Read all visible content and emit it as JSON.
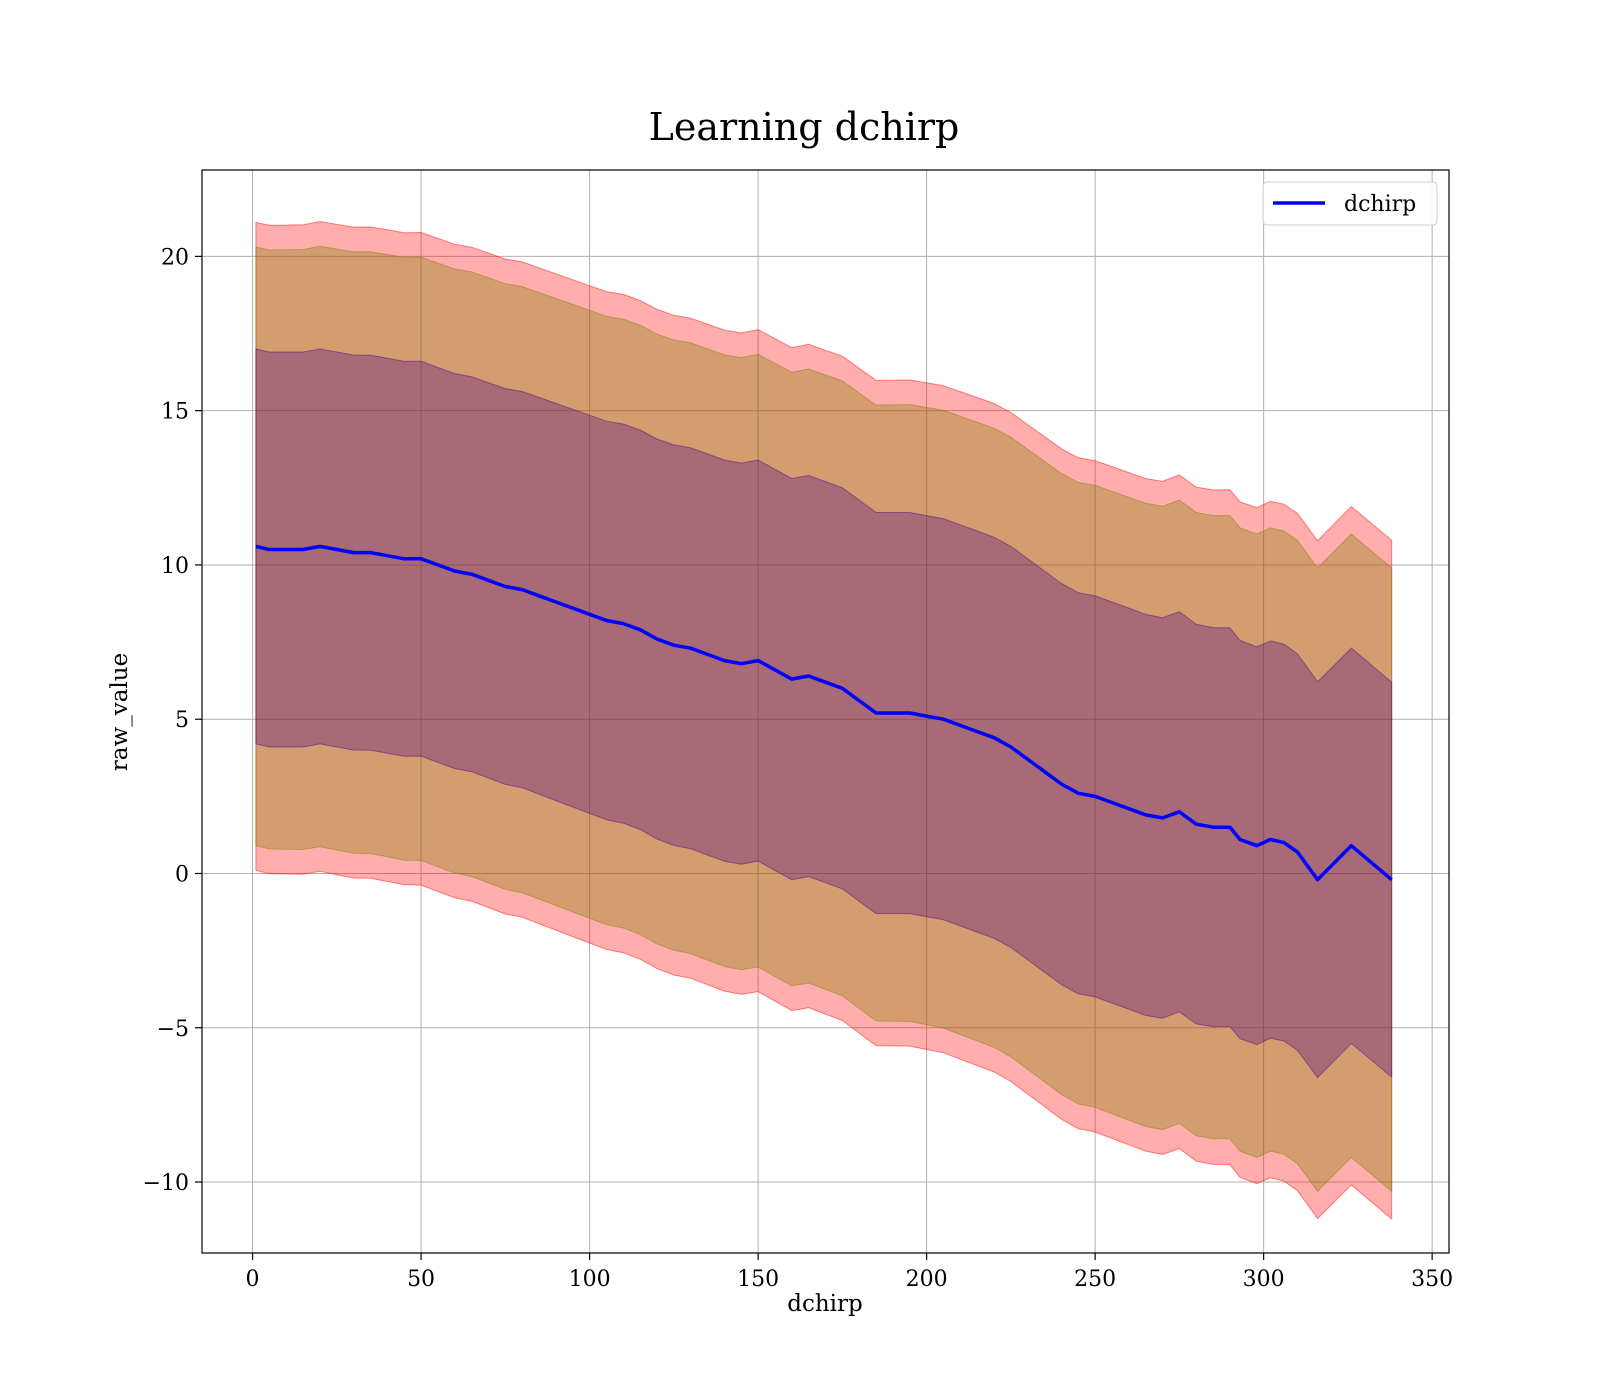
{
  "chart_data": {
    "type": "line",
    "title": "Learning dchirp",
    "xlabel": "dchirp",
    "ylabel": "raw_value",
    "xlim": [
      -15,
      355
    ],
    "ylim": [
      -12.3,
      22.8
    ],
    "xticks": [
      0,
      50,
      100,
      150,
      200,
      250,
      300,
      350
    ],
    "yticks": [
      -10,
      -5,
      0,
      5,
      10,
      15,
      20
    ],
    "xtick_labels": [
      "0",
      "50",
      "100",
      "150",
      "200",
      "250",
      "300",
      "350"
    ],
    "ytick_labels": [
      "−10",
      "−5",
      "0",
      "5",
      "10",
      "15",
      "20"
    ],
    "grid": true,
    "legend": {
      "position": "top-right",
      "entries": [
        "dchirp"
      ]
    },
    "series": [
      {
        "name": "dchirp",
        "color": "#0000ff",
        "x": [
          1,
          5,
          10,
          15,
          20,
          25,
          30,
          35,
          40,
          45,
          50,
          55,
          60,
          65,
          70,
          75,
          80,
          85,
          90,
          95,
          100,
          105,
          110,
          115,
          120,
          125,
          130,
          135,
          140,
          145,
          150,
          155,
          160,
          165,
          170,
          175,
          180,
          185,
          190,
          195,
          200,
          205,
          210,
          215,
          220,
          225,
          230,
          235,
          240,
          245,
          250,
          255,
          260,
          265,
          270,
          275,
          280,
          285,
          290,
          293,
          298,
          302,
          306,
          310,
          316,
          326,
          338
        ],
        "y": [
          10.6,
          10.5,
          10.5,
          10.5,
          10.6,
          10.5,
          10.4,
          10.4,
          10.3,
          10.2,
          10.2,
          10.0,
          9.8,
          9.7,
          9.5,
          9.3,
          9.2,
          9.0,
          8.8,
          8.6,
          8.4,
          8.2,
          8.1,
          7.9,
          7.6,
          7.4,
          7.3,
          7.1,
          6.9,
          6.8,
          6.9,
          6.6,
          6.3,
          6.4,
          6.2,
          6.0,
          5.6,
          5.2,
          5.2,
          5.2,
          5.1,
          5.0,
          4.8,
          4.6,
          4.4,
          4.1,
          3.7,
          3.3,
          2.9,
          2.6,
          2.5,
          2.3,
          2.1,
          1.9,
          1.8,
          2.0,
          1.6,
          1.5,
          1.5,
          1.1,
          0.9,
          1.1,
          1.0,
          0.7,
          -0.2,
          0.9,
          -0.2
        ]
      }
    ],
    "bands": [
      {
        "name": "±3σ",
        "color": "#ff0000",
        "opacity": 0.32,
        "offset": [
          10.5,
          10.6,
          10.7,
          10.8,
          10.9,
          11.0
        ]
      },
      {
        "name": "±2σ",
        "color": "#808000",
        "opacity": 0.35,
        "offset": [
          9.7,
          9.8,
          9.9,
          10.0,
          10.1,
          10.1
        ]
      },
      {
        "name": "±1σ",
        "color": "#4b0082",
        "opacity": 0.32,
        "offset": [
          6.4,
          6.4,
          6.5,
          6.5,
          6.5,
          6.4
        ]
      }
    ]
  }
}
